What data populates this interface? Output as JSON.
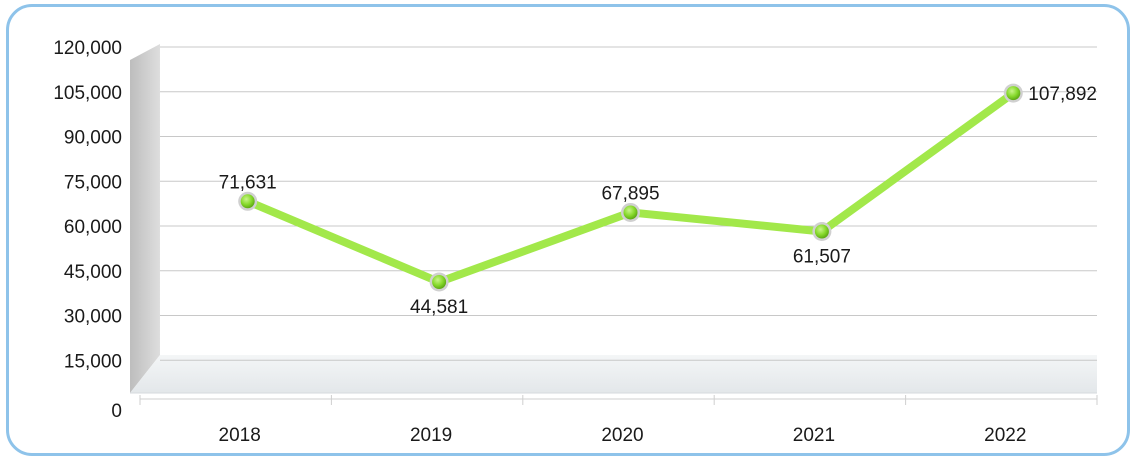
{
  "chart_data": {
    "type": "line",
    "categories": [
      "2018",
      "2019",
      "2020",
      "2021",
      "2022"
    ],
    "series": [
      {
        "values": [
          71631,
          44581,
          67895,
          61507,
          107892
        ]
      }
    ],
    "data_labels": [
      "71,631",
      "44,581",
      "67,895",
      "61,507",
      "107,892"
    ],
    "y_ticks": [
      "0",
      "15,000",
      "30,000",
      "45,000",
      "60,000",
      "75,000",
      "90,000",
      "105,000",
      "120,000"
    ],
    "ylim": [
      0,
      120000
    ],
    "grid": true,
    "legend": "none",
    "colors": {
      "line": "#a2e84a",
      "marker": "#7ed321",
      "marker_ring": "#d0d0d0",
      "frame": "#8ec3ea",
      "wall": "#cfcfcf",
      "floor": "#eef1f3",
      "grid": "#c8c8c8"
    }
  }
}
